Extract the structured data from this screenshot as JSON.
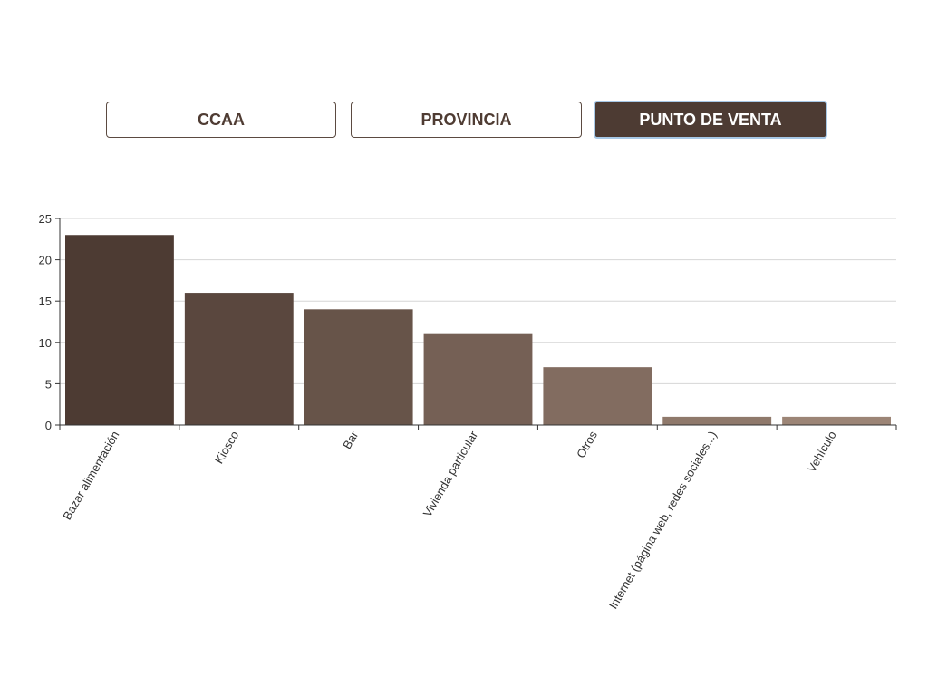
{
  "tabs": [
    {
      "label": "CCAA",
      "active": false
    },
    {
      "label": "PROVINCIA",
      "active": false
    },
    {
      "label": "PUNTO DE VENTA",
      "active": true
    }
  ],
  "colors": {
    "accent": "#4d3b33",
    "active_tab_border": "#a7c8e6",
    "bar_gradient_start": "#4d3b33",
    "bar_gradient_end": "#9c8576"
  },
  "chart_data": {
    "type": "bar",
    "categories": [
      "Bazar alimentación",
      "Kiosco",
      "Bar",
      "Vivienda particular",
      "Otros",
      "Internet (página web, redes sociales...)",
      "Vehículo"
    ],
    "values": [
      23,
      16,
      14,
      11,
      7,
      1,
      1
    ],
    "title": "",
    "xlabel": "",
    "ylabel": "",
    "ylim": [
      0,
      25
    ],
    "yticks": [
      0,
      5,
      10,
      15,
      20,
      25
    ],
    "grid": true,
    "legend": "none"
  }
}
